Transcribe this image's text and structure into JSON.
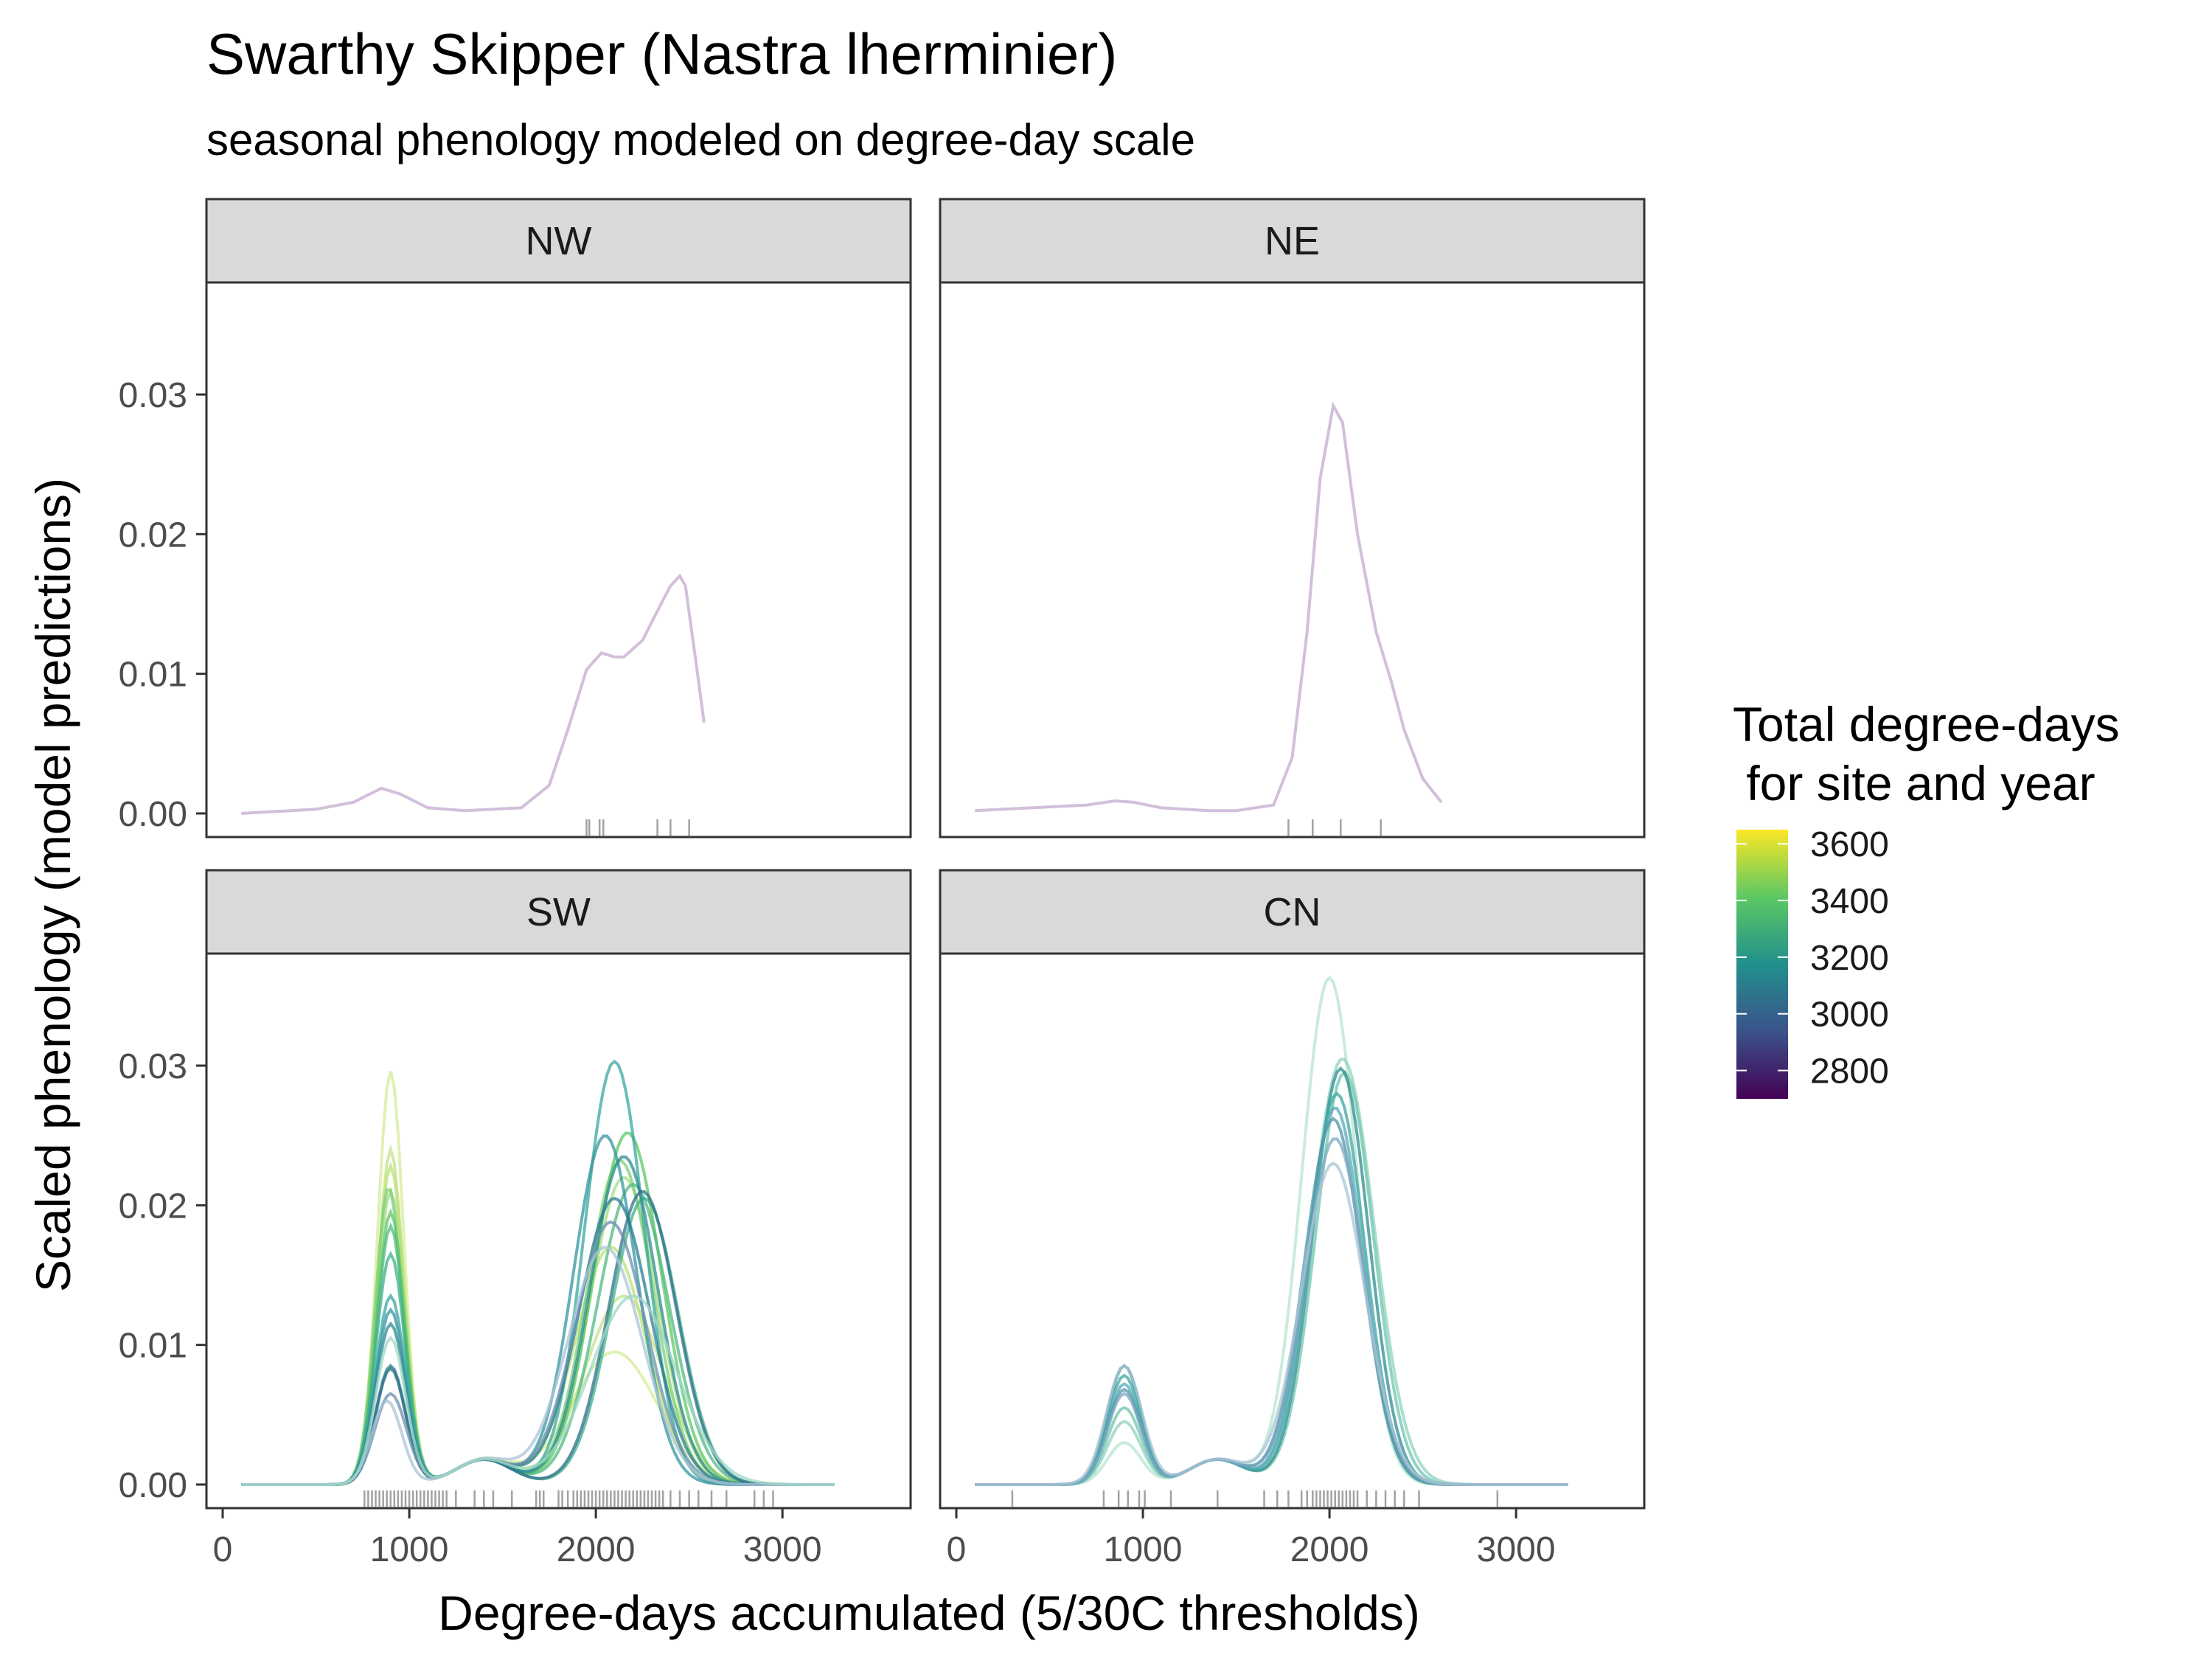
{
  "chart_data": {
    "type": "line",
    "title": "Swarthy Skipper (Nastra lherminier)",
    "subtitle": "seasonal phenology modeled on degree-day scale",
    "xlabel": "Degree-days accumulated (5/30C thresholds)",
    "ylabel": "Scaled phenology (model predictions)",
    "xlim": [
      0,
      3650
    ],
    "ylim": [
      0,
      0.0385
    ],
    "x_ticks": [
      0,
      1000,
      2000,
      3000
    ],
    "x_tick_labels": [
      "0",
      "1000",
      "2000",
      "3000"
    ],
    "y_ticks": [
      0,
      0.01,
      0.02,
      0.03
    ],
    "y_tick_labels": [
      "0.00",
      "0.01",
      "0.02",
      "0.03"
    ],
    "grid": false,
    "legend": {
      "title_line1": "Total degree-days",
      "title_line2": " for site and year",
      "position": "right",
      "color_scale": "viridis",
      "range": [
        2700,
        3650
      ],
      "ticks": [
        3600,
        3400,
        3200,
        3000,
        2800
      ],
      "tick_labels": [
        "3600",
        "3400",
        "3200",
        "3000",
        "2800"
      ],
      "stops": [
        "#440154",
        "#3b528b",
        "#21908c",
        "#5dc863",
        "#fde725"
      ]
    },
    "panels": [
      {
        "label": "NW",
        "series": [
          {
            "color": "#c4a9cd",
            "points": [
              [
                100,
                0
              ],
              [
                500,
                0.0003
              ],
              [
                700,
                0.0008
              ],
              [
                850,
                0.0018
              ],
              [
                950,
                0.0014
              ],
              [
                1100,
                0.0004
              ],
              [
                1300,
                0.0002
              ],
              [
                1600,
                0.0004
              ],
              [
                1750,
                0.002
              ],
              [
                1850,
                0.006
              ],
              [
                1950,
                0.0103
              ],
              [
                2030,
                0.0115
              ],
              [
                2100,
                0.0112
              ],
              [
                2150,
                0.0112
              ],
              [
                2250,
                0.0124
              ],
              [
                2330,
                0.0145
              ],
              [
                2400,
                0.0163
              ],
              [
                2450,
                0.017
              ],
              [
                2480,
                0.0163
              ],
              [
                2530,
                0.0115
              ],
              [
                2580,
                0.0065
              ]
            ]
          }
        ],
        "rug": [
          1950,
          1965,
          2020,
          2040,
          2330,
          2400,
          2500
        ]
      },
      {
        "label": "NE",
        "series": [
          {
            "color": "#c4a9cd",
            "points": [
              [
                100,
                0.0002
              ],
              [
                400,
                0.0004
              ],
              [
                700,
                0.0006
              ],
              [
                850,
                0.0009
              ],
              [
                950,
                0.0008
              ],
              [
                1100,
                0.0004
              ],
              [
                1350,
                0.0002
              ],
              [
                1500,
                0.0002
              ],
              [
                1700,
                0.0006
              ],
              [
                1800,
                0.004
              ],
              [
                1880,
                0.013
              ],
              [
                1950,
                0.024
              ],
              [
                2020,
                0.0292
              ],
              [
                2070,
                0.028
              ],
              [
                2150,
                0.02
              ],
              [
                2250,
                0.013
              ],
              [
                2330,
                0.0095
              ],
              [
                2400,
                0.006
              ],
              [
                2500,
                0.0025
              ],
              [
                2600,
                0.0008
              ]
            ]
          }
        ],
        "rug": [
          1780,
          1910,
          2060,
          2275
        ]
      },
      {
        "label": "SW",
        "series": [
          {
            "color": "#d4ec9a",
            "peaks": [
              [
                900,
                0.0296,
                70
              ],
              [
                2100,
                0.0095,
                230
              ]
            ]
          },
          {
            "color": "#c2e38a",
            "peaks": [
              [
                900,
                0.024,
                70
              ],
              [
                2150,
                0.0135,
                210
              ]
            ]
          },
          {
            "color": "#b9e276",
            "peaks": [
              [
                900,
                0.0228,
                75
              ],
              [
                2080,
                0.017,
                190
              ]
            ]
          },
          {
            "color": "#a6dc82",
            "peaks": [
              [
                900,
                0.021,
                75
              ],
              [
                2150,
                0.022,
                180
              ]
            ]
          },
          {
            "color": "#7ecf7a",
            "peaks": [
              [
                890,
                0.0213,
                72
              ],
              [
                2130,
                0.0232,
                175
              ]
            ]
          },
          {
            "color": "#5dc863",
            "peaks": [
              [
                900,
                0.0195,
                75
              ],
              [
                2170,
                0.0252,
                180
              ]
            ]
          },
          {
            "color": "#52b882",
            "peaks": [
              [
                900,
                0.0185,
                75
              ],
              [
                2200,
                0.0215,
                190
              ]
            ]
          },
          {
            "color": "#3fb08a",
            "peaks": [
              [
                900,
                0.0165,
                78
              ],
              [
                2260,
                0.0205,
                180
              ]
            ]
          },
          {
            "color": "#3aa7a0",
            "peaks": [
              [
                900,
                0.0135,
                80
              ],
              [
                2100,
                0.0303,
                160
              ]
            ]
          },
          {
            "color": "#3396a0",
            "peaks": [
              [
                900,
                0.0125,
                80
              ],
              [
                2050,
                0.025,
                170
              ]
            ]
          },
          {
            "color": "#2d8b90",
            "peaks": [
              [
                900,
                0.0115,
                80
              ],
              [
                2150,
                0.0235,
                180
              ]
            ]
          },
          {
            "color": "#287d8e",
            "peaks": [
              [
                900,
                0.0085,
                80
              ],
              [
                2100,
                0.0205,
                190
              ]
            ]
          },
          {
            "color": "#2f6f8a",
            "peaks": [
              [
                900,
                0.0083,
                80
              ],
              [
                2250,
                0.021,
                180
              ]
            ]
          },
          {
            "color": "#6b8fb0",
            "peaks": [
              [
                900,
                0.0065,
                85
              ],
              [
                2080,
                0.0188,
                190
              ]
            ]
          },
          {
            "color": "#a9c4d6",
            "peaks": [
              [
                880,
                0.006,
                80
              ],
              [
                2050,
                0.017,
                200
              ]
            ]
          },
          {
            "color": "#9fd8c6",
            "peaks": [
              [
                900,
                0.0105,
                80
              ],
              [
                2200,
                0.0135,
                230
              ]
            ]
          }
        ],
        "rug": [
          760,
          780,
          800,
          820,
          840,
          860,
          880,
          900,
          920,
          940,
          960,
          980,
          1000,
          1020,
          1040,
          1060,
          1080,
          1100,
          1120,
          1140,
          1160,
          1180,
          1200,
          1250,
          1350,
          1400,
          1450,
          1550,
          1680,
          1700,
          1720,
          1800,
          1820,
          1850,
          1880,
          1900,
          1920,
          1940,
          1960,
          1980,
          2000,
          2020,
          2040,
          2060,
          2080,
          2100,
          2120,
          2140,
          2160,
          2180,
          2200,
          2220,
          2240,
          2260,
          2280,
          2300,
          2320,
          2340,
          2360,
          2400,
          2450,
          2500,
          2550,
          2620,
          2700,
          2850,
          2900,
          2950
        ]
      },
      {
        "label": "CN",
        "series": [
          {
            "color": "#b7e4cf",
            "peaks": [
              [
                900,
                0.003,
                90
              ],
              [
                2000,
                0.0363,
                150
              ]
            ]
          },
          {
            "color": "#8fd3bf",
            "peaks": [
              [
                900,
                0.0045,
                90
              ],
              [
                2070,
                0.0305,
                170
              ]
            ]
          },
          {
            "color": "#6cc6ae",
            "peaks": [
              [
                900,
                0.0055,
                90
              ],
              [
                2080,
                0.0295,
                155
              ]
            ]
          },
          {
            "color": "#2d8b90",
            "peaks": [
              [
                900,
                0.0085,
                90
              ],
              [
                2060,
                0.0298,
                150
              ]
            ]
          },
          {
            "color": "#3aa7a0",
            "peaks": [
              [
                900,
                0.0078,
                90
              ],
              [
                2040,
                0.028,
                150
              ]
            ]
          },
          {
            "color": "#5aa9b8",
            "peaks": [
              [
                900,
                0.0072,
                90
              ],
              [
                2030,
                0.027,
                150
              ]
            ]
          },
          {
            "color": "#4f95a8",
            "peaks": [
              [
                900,
                0.0068,
                90
              ],
              [
                2020,
                0.0262,
                155
              ]
            ]
          },
          {
            "color": "#7ba8c0",
            "peaks": [
              [
                900,
                0.0065,
                90
              ],
              [
                2030,
                0.0248,
                160
              ]
            ]
          },
          {
            "color": "#a9c4d6",
            "peaks": [
              [
                900,
                0.0085,
                95
              ],
              [
                2020,
                0.023,
                170
              ]
            ]
          }
        ],
        "rug": [
          300,
          790,
          870,
          920,
          980,
          1010,
          1150,
          1400,
          1650,
          1720,
          1780,
          1850,
          1880,
          1910,
          1930,
          1950,
          1970,
          1990,
          2010,
          2030,
          2050,
          2070,
          2090,
          2110,
          2130,
          2150,
          2200,
          2250,
          2300,
          2350,
          2400,
          2480,
          2900
        ]
      }
    ]
  }
}
